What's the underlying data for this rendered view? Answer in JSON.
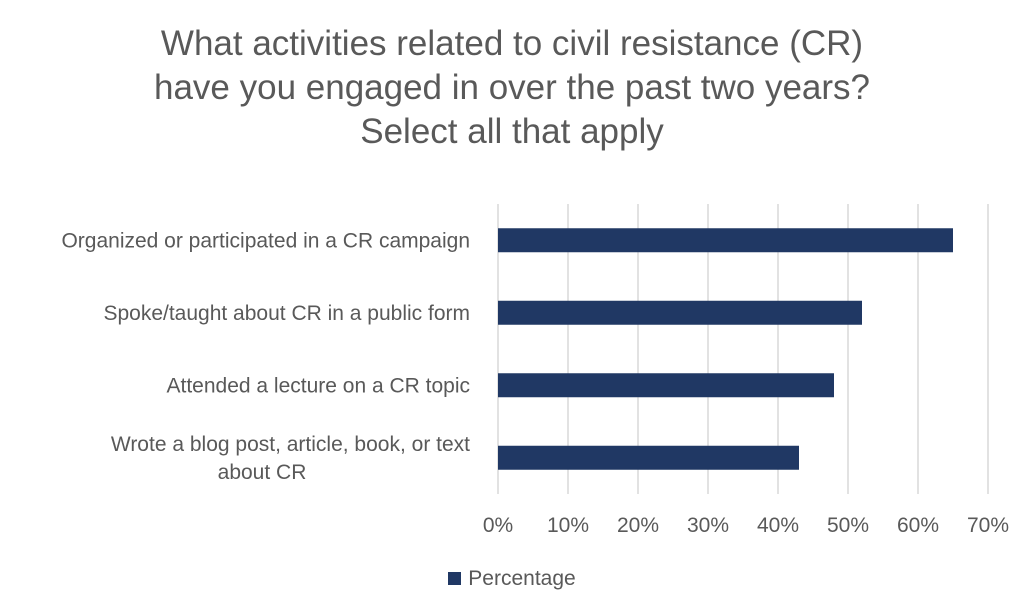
{
  "chart_data": {
    "type": "bar",
    "orientation": "horizontal",
    "title_lines": [
      "What activities related to civil resistance (CR)",
      "have you engaged in over the past two years?",
      "Select all that apply"
    ],
    "categories": [
      [
        "Organized or participated in a CR campaign"
      ],
      [
        "Spoke/taught about CR in a public form"
      ],
      [
        "Attended a lecture on a CR topic"
      ],
      [
        "Wrote a blog post, article, book, or text",
        "about CR"
      ]
    ],
    "series": [
      {
        "name": "Percentage",
        "values": [
          65,
          52,
          48,
          43
        ],
        "color": "#203864"
      }
    ],
    "xlim": [
      0,
      70
    ],
    "xticks": [
      0,
      10,
      20,
      30,
      40,
      50,
      60,
      70
    ],
    "tick_format": "{v}%",
    "grid": true,
    "legend_position": "bottom"
  }
}
